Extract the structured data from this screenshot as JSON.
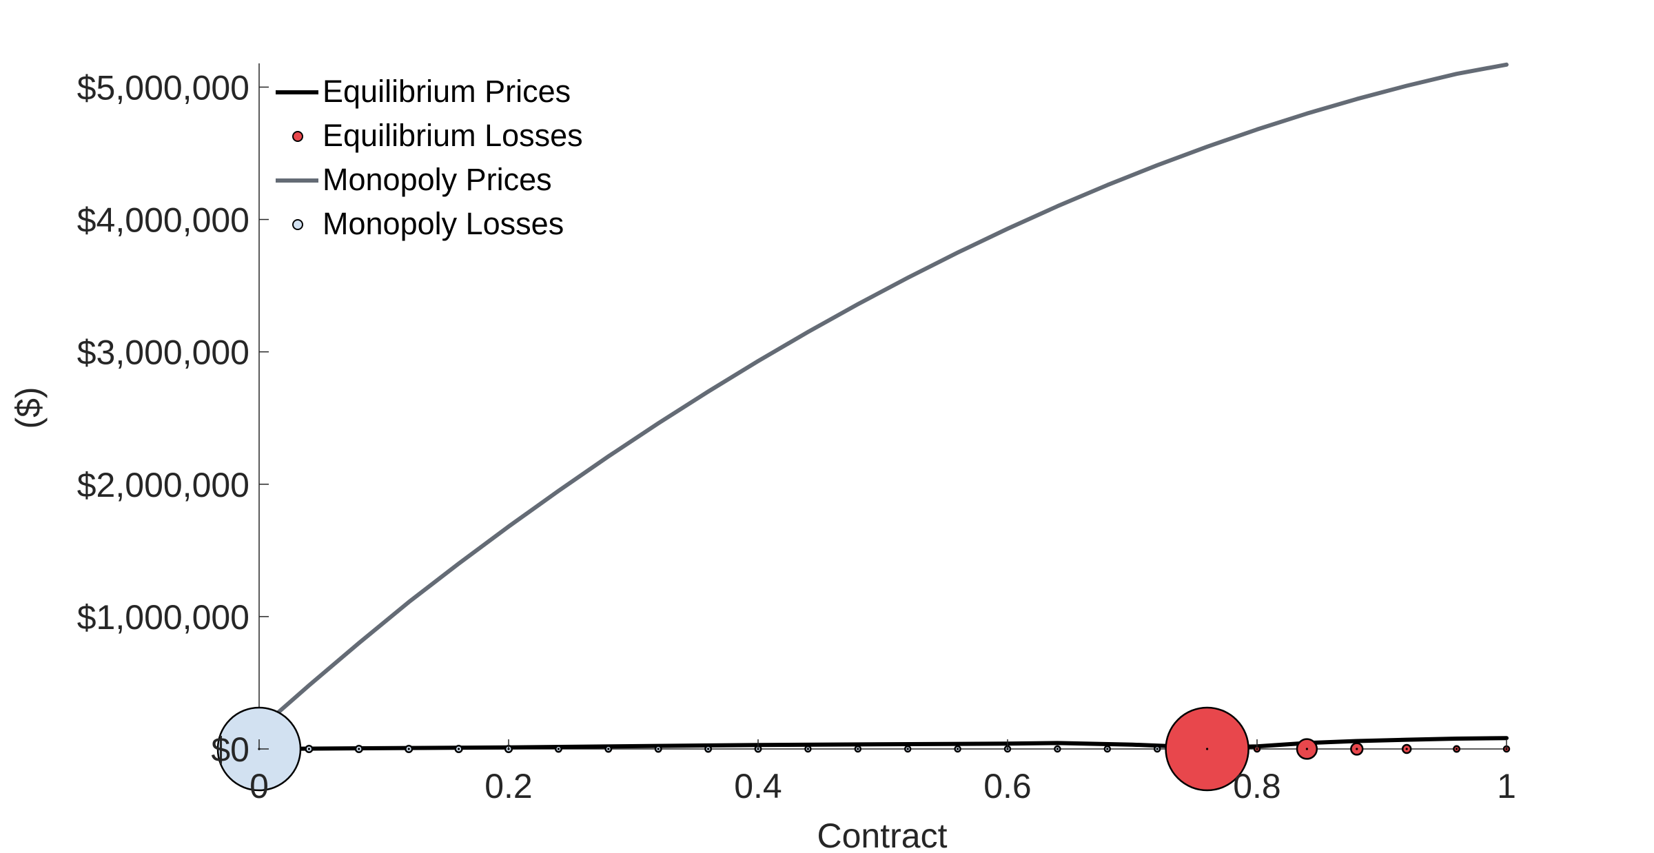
{
  "chart_data": {
    "type": "line",
    "xlabel": "Contract",
    "ylabel": "($)",
    "xlim": [
      0,
      1
    ],
    "ylim": [
      0,
      5200000
    ],
    "x_ticks": [
      0,
      0.2,
      0.4,
      0.6,
      0.8,
      1
    ],
    "x_tick_labels": [
      "0",
      "0.2",
      "0.4",
      "0.6",
      "0.8",
      "1"
    ],
    "y_ticks": [
      0,
      1000000,
      2000000,
      3000000,
      4000000,
      5000000
    ],
    "y_tick_labels": [
      "$0",
      "$1,000,000",
      "$2,000,000",
      "$3,000,000",
      "$4,000,000",
      "$5,000,000"
    ],
    "grid": false,
    "legend_position": "top-left",
    "legend": [
      {
        "label": "Equilibrium Prices",
        "kind": "line",
        "color": "#000000"
      },
      {
        "label": "Equilibrium Losses",
        "kind": "marker",
        "color": "#e8474c"
      },
      {
        "label": "Monopoly Prices",
        "kind": "line",
        "color": "#646b75"
      },
      {
        "label": "Monopoly Losses",
        "kind": "marker",
        "color": "#d2e1f1"
      }
    ],
    "colors": {
      "equilibrium_prices": "#000000",
      "equilibrium_losses": "#e8474c",
      "monopoly_prices": "#646b75",
      "monopoly_losses": "#d2e1f1",
      "axis": "#262626"
    },
    "series": [
      {
        "name": "Monopoly Prices",
        "type": "line",
        "x": [
          0,
          0.04,
          0.08,
          0.12,
          0.16,
          0.2,
          0.24,
          0.28,
          0.32,
          0.36,
          0.4,
          0.44,
          0.48,
          0.52,
          0.56,
          0.6,
          0.64,
          0.68,
          0.72,
          0.76,
          0.8,
          0.84,
          0.88,
          0.92,
          0.96,
          1
        ],
        "y": [
          150000,
          480000,
          800000,
          1110000,
          1400000,
          1680000,
          1950000,
          2210000,
          2460000,
          2700000,
          2930000,
          3150000,
          3360000,
          3560000,
          3750000,
          3930000,
          4100000,
          4260000,
          4410000,
          4550000,
          4680000,
          4800000,
          4910000,
          5010000,
          5100000,
          5170000
        ]
      },
      {
        "name": "Equilibrium Prices",
        "type": "line",
        "x": [
          0,
          0.2,
          0.4,
          0.6,
          0.64,
          0.7,
          0.76,
          0.8,
          0.84,
          0.88,
          0.92,
          0.96,
          1
        ],
        "y": [
          0,
          12000,
          30000,
          40000,
          45000,
          33000,
          10000,
          20000,
          45000,
          60000,
          70000,
          78000,
          82000
        ]
      },
      {
        "name": "Monopoly Losses",
        "type": "scatter",
        "x": [
          0,
          0.04,
          0.08,
          0.12,
          0.16,
          0.2,
          0.24,
          0.28,
          0.32,
          0.36,
          0.4,
          0.44,
          0.48,
          0.52,
          0.56,
          0.6,
          0.64,
          0.68,
          0.72
        ],
        "y": [
          0,
          0,
          0,
          0,
          0,
          0,
          0,
          0,
          0,
          0,
          0,
          0,
          0,
          0,
          0,
          0,
          0,
          0,
          0
        ],
        "size": [
          1,
          0.08,
          0.08,
          0.08,
          0.08,
          0.08,
          0.07,
          0.07,
          0.07,
          0.07,
          0.07,
          0.06,
          0.06,
          0.06,
          0.06,
          0.05,
          0.05,
          0.05,
          0.05
        ]
      },
      {
        "name": "Equilibrium Losses",
        "type": "scatter",
        "x": [
          0.76,
          0.8,
          0.84,
          0.88,
          0.92,
          0.96,
          1
        ],
        "y": [
          0,
          0,
          0,
          0,
          0,
          0,
          0
        ],
        "size": [
          1,
          0.06,
          0.24,
          0.14,
          0.1,
          0.07,
          0.04
        ]
      }
    ]
  }
}
